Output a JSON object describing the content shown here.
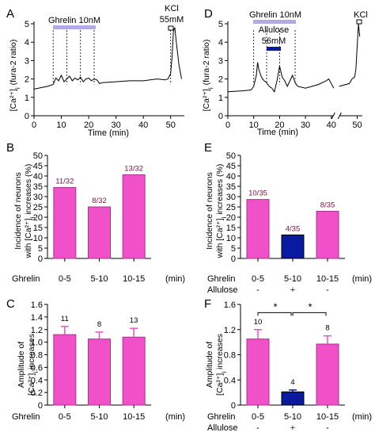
{
  "colors": {
    "pink": "#f050c8",
    "pink_stroke": "#b03090",
    "navy": "#0a1aa0",
    "lavender": "#b4a8e6",
    "count_label": "#7a1040",
    "axis": "#000000"
  },
  "chart_data": [
    {
      "panel": "A",
      "type": "line",
      "ylabel": "[Ca²⁺]i (fura-2 ratio)",
      "xlabel": "Time (min)",
      "xlim": [
        0,
        55
      ],
      "ylim": [
        0,
        5
      ],
      "xticks": [
        "0",
        "10",
        "20",
        "30",
        "40",
        "50"
      ],
      "yticks": [
        "0",
        "1",
        "2",
        "3",
        "4",
        "5"
      ],
      "annotations": [
        {
          "text": "Ghrelin 10nM",
          "start": 7,
          "end": 23
        },
        {
          "text": "KCl",
          "text2": "55mM",
          "at": 51
        }
      ],
      "markers_min": [
        7,
        12,
        17,
        22,
        50
      ],
      "series": [
        {
          "x": [
            0,
            5,
            7,
            8,
            9,
            10,
            11,
            12,
            13,
            14,
            15,
            16,
            17,
            18,
            19,
            20,
            21,
            22,
            23,
            24,
            25,
            30,
            35,
            40,
            45,
            48,
            49,
            50,
            50.5,
            51,
            51.5,
            52,
            53,
            54
          ],
          "values": [
            1.45,
            1.6,
            1.7,
            2.05,
            1.9,
            2.2,
            1.85,
            2.0,
            2.15,
            1.9,
            2.05,
            1.95,
            2.1,
            1.85,
            2.0,
            2.05,
            1.9,
            2.0,
            1.95,
            1.75,
            1.8,
            1.85,
            1.9,
            1.9,
            2.0,
            1.95,
            2.0,
            2.3,
            3.2,
            4.6,
            4.8,
            4.1,
            2.8,
            2.0
          ]
        }
      ]
    },
    {
      "panel": "D",
      "type": "line",
      "ylabel": "[Ca²⁺]i (fura-2 ratio)",
      "xlabel": "Time (min)",
      "xlim": [
        0,
        52
      ],
      "ylim": [
        0,
        5
      ],
      "xticks": [
        "0",
        "10",
        "20",
        "30",
        "40",
        "50"
      ],
      "yticks": [
        "0",
        "1",
        "2",
        "3",
        "4",
        "5"
      ],
      "annotations": [
        {
          "text": "Ghrelin 10nM",
          "start": 10,
          "end": 26
        },
        {
          "text": "Allulose",
          "text2": "56mM",
          "start": 15,
          "end": 20
        },
        {
          "text": "KCl",
          "at": 50
        }
      ],
      "markers_min": [
        10,
        15,
        20,
        26
      ],
      "series": [
        {
          "x": [
            0,
            5,
            9,
            10,
            11,
            11.5,
            12,
            13,
            14,
            15,
            16,
            17,
            18,
            19,
            20,
            21,
            22,
            23,
            24,
            25,
            26,
            27,
            30,
            35,
            38,
            39,
            41,
            43,
            47,
            48,
            49,
            49.5,
            50,
            50.5,
            51
          ],
          "values": [
            1.3,
            1.35,
            1.4,
            1.6,
            2.2,
            2.9,
            2.5,
            2.1,
            1.9,
            1.8,
            1.6,
            1.5,
            1.3,
            1.9,
            2.7,
            2.1,
            1.9,
            1.6,
            1.9,
            2.2,
            1.8,
            1.6,
            1.5,
            1.7,
            1.9,
            2.0,
            1.5,
            1.6,
            1.75,
            2.0,
            2.1,
            2.5,
            3.8,
            5.0,
            4.3
          ]
        }
      ]
    },
    {
      "panel": "B",
      "type": "bar",
      "ylabel": "Incidence of neurons with [Ca²⁺]i increases (%)",
      "ylim": [
        0,
        50
      ],
      "yticks": [
        "0",
        "5",
        "10",
        "15",
        "20",
        "25",
        "30",
        "35",
        "40",
        "45",
        "50"
      ],
      "row_labels": [
        "Ghrelin"
      ],
      "categories": [
        "0-5",
        "5-10",
        "10-15"
      ],
      "unit": "(min)",
      "values": [
        34.4,
        25.0,
        40.6
      ],
      "value_labels": [
        "11/32",
        "8/32",
        "13/32"
      ],
      "bar_colors": [
        "pink",
        "pink",
        "pink"
      ]
    },
    {
      "panel": "E",
      "type": "bar",
      "ylabel": "Incidence of neurons with [Ca²⁺]i increases (%)",
      "ylim": [
        0,
        50
      ],
      "yticks": [
        "0",
        "5",
        "10",
        "15",
        "20",
        "25",
        "30",
        "35",
        "40",
        "45",
        "50"
      ],
      "row_labels": [
        "Ghrelin",
        "Allulose"
      ],
      "categories": [
        "0-5",
        "5-10",
        "10-15"
      ],
      "allulose": [
        "-",
        "+",
        "-"
      ],
      "unit": "(min)",
      "values": [
        28.6,
        11.4,
        22.9
      ],
      "value_labels": [
        "10/35",
        "4/35",
        "8/35"
      ],
      "bar_colors": [
        "pink",
        "navy",
        "pink"
      ]
    },
    {
      "panel": "C",
      "type": "bar",
      "ylabel": "Amplitude of [Ca²⁺]i increases",
      "ylim": [
        0,
        1.6
      ],
      "yticks": [
        "0",
        "0.2",
        "0.4",
        "0.6",
        "0.8",
        "1.0",
        "1.2",
        "1.4",
        "1.6"
      ],
      "row_labels": [
        "Ghrelin"
      ],
      "categories": [
        "0-5",
        "5-10",
        "10-15"
      ],
      "unit": "(min)",
      "values": [
        1.12,
        1.05,
        1.08
      ],
      "errors": [
        0.13,
        0.11,
        0.14
      ],
      "value_labels": [
        "11",
        "8",
        "13"
      ],
      "bar_colors": [
        "pink",
        "pink",
        "pink"
      ]
    },
    {
      "panel": "F",
      "type": "bar",
      "ylabel": "Amplitude of [Ca²⁺]i increases",
      "ylim": [
        0,
        1.6
      ],
      "yticks": [
        "0",
        "0.4",
        "0.8",
        "1.2",
        "1.6"
      ],
      "row_labels": [
        "Ghrelin",
        "Allulose"
      ],
      "categories": [
        "0-5",
        "5-10",
        "10-15"
      ],
      "allulose": [
        "-",
        "+",
        "-"
      ],
      "unit": "(min)",
      "values": [
        1.05,
        0.21,
        0.97
      ],
      "errors": [
        0.15,
        0.03,
        0.13
      ],
      "value_labels": [
        "10",
        "4",
        "8"
      ],
      "bar_colors": [
        "pink",
        "navy",
        "pink"
      ],
      "significance": [
        "*",
        "*"
      ]
    }
  ]
}
